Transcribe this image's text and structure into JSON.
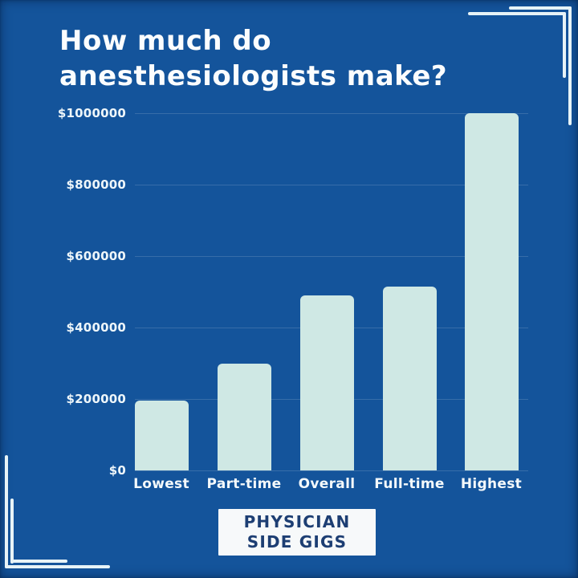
{
  "canvas": {
    "background": "#14549b",
    "decoration_color": "#e7f3f7"
  },
  "header": {
    "title_line1": "How much do",
    "title_line2": "anesthesiologists make?"
  },
  "chart_data": {
    "type": "bar",
    "title": "How much do anesthesiologists make?",
    "categories": [
      "Lowest",
      "Part-time",
      "Overall",
      "Full-time",
      "Highest"
    ],
    "values": [
      195000,
      300000,
      490000,
      515000,
      1000000
    ],
    "ylim": [
      0,
      1000000
    ],
    "yticks": [
      {
        "value": 0,
        "label": "$0"
      },
      {
        "value": 200000,
        "label": "$200000"
      },
      {
        "value": 400000,
        "label": "$400000"
      },
      {
        "value": 600000,
        "label": "$600000"
      },
      {
        "value": 800000,
        "label": "$800000"
      },
      {
        "value": 1000000,
        "label": "$1000000"
      }
    ],
    "grid": true,
    "legend": false,
    "xlabel": "",
    "ylabel": "",
    "colors": {
      "bar": "#cfe8e4",
      "gridline": "rgba(255,255,255,0.15)",
      "tick_label": "#eef6fa",
      "category_label": "#f4f9fb"
    }
  },
  "footer_badge": {
    "line1": "PHYSICIAN",
    "line2": "SIDE GIGS",
    "bg": "#f7f9fa",
    "text_color": "#1d3e73"
  }
}
